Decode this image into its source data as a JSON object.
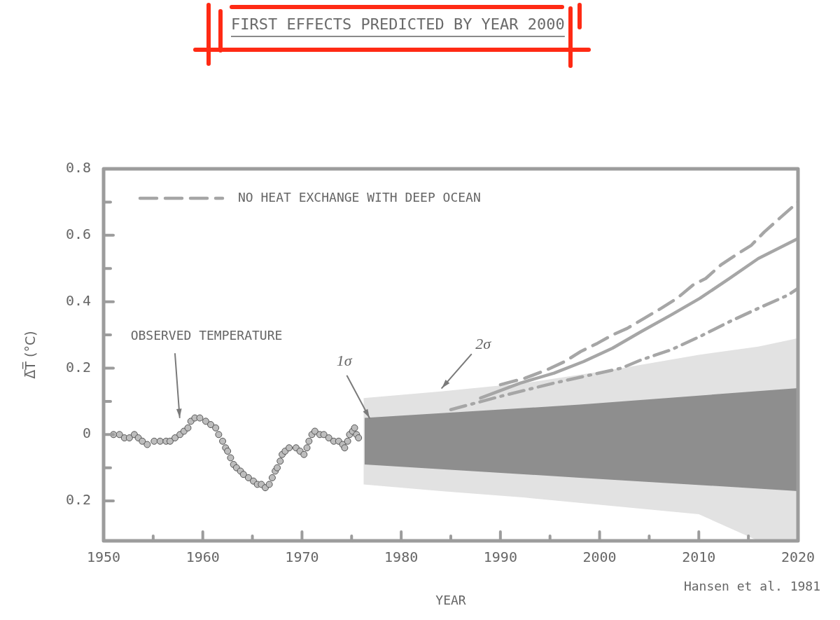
{
  "chart_data": {
    "type": "line",
    "title": "FIRST EFFECTS PREDICTED BY YEAR 2000",
    "xlabel": "YEAR",
    "ylabel": "Δ̅T̅ (°C)",
    "xlim": [
      1950,
      2020
    ],
    "xticks": [
      1950,
      {
        "value": 1955,
        "label": null
      },
      1960,
      {
        "value": 1965,
        "label": null
      },
      1970,
      {
        "value": 1975,
        "label": null
      },
      1980,
      {
        "value": 1985,
        "label": null
      },
      1990,
      {
        "value": 1995,
        "label": null
      },
      2000,
      {
        "value": 2005,
        "label": null
      },
      2010,
      {
        "value": 2015,
        "label": null
      },
      2020
    ],
    "ylim": [
      -0.32,
      0.8
    ],
    "yticks": [
      {
        "value": -0.2,
        "label": "0.2"
      },
      {
        "value": -0.1,
        "label": null
      },
      0,
      {
        "value": 0.1,
        "label": null
      },
      0.2,
      {
        "value": 0.3,
        "label": null
      },
      0.4,
      {
        "value": 0.5,
        "label": null
      },
      0.6,
      {
        "value": 0.7,
        "label": null
      },
      0.8
    ],
    "grid": false,
    "legend": "top left",
    "annotations": [
      "OBSERVED TEMPERATURE",
      {
        "text": "1σ",
        "x": 1976.8,
        "y": 0.05
      },
      {
        "text": "2σ",
        "x": 1984.1,
        "y": 0.14
      },
      "Hansen et al. 1981"
    ],
    "series": [
      {
        "type": "area",
        "color": "#e2e2e2",
        "x": [
          1976.2,
          1984,
          1992.5,
          2001.3,
          2010,
          2016,
          2020
        ],
        "values": [
          null,
          null,
          null,
          null,
          null,
          null,
          null
        ],
        "lower": [
          -0.15,
          -0.17,
          -0.19,
          -0.215,
          -0.24,
          -0.32,
          -0.32
        ],
        "upper": [
          0.11,
          0.13,
          0.155,
          0.195,
          0.24,
          0.265,
          0.29
        ]
      },
      {
        "type": "area",
        "color": "#8e8e8e",
        "x": [
          1976.3,
          1998,
          2020
        ],
        "values": [
          null,
          null,
          null
        ],
        "lower": [
          -0.09,
          -0.13,
          -0.17
        ],
        "upper": [
          0.05,
          0.09,
          0.14
        ]
      },
      {
        "type": "scatter",
        "marker": "circle",
        "color": "#bdbdbd",
        "x": [
          1951.0,
          1951.6,
          1952.1,
          1952.6,
          1953.1,
          1953.5,
          1953.9,
          1954.4,
          1955.1,
          1955.7,
          1956.3,
          1956.7,
          1957.2,
          1957.7,
          1958.1,
          1958.5,
          1958.8,
          1959.2,
          1959.7,
          1960.3,
          1960.8,
          1961.3,
          1961.6,
          1962.0,
          1962.3,
          1962.5,
          1962.8,
          1963.1,
          1963.4,
          1963.8,
          1964.1,
          1964.6,
          1965.1,
          1965.5,
          1965.9,
          1966.3,
          1966.7,
          1967.0,
          1967.3,
          1967.5,
          1967.8,
          1968.0,
          1968.3,
          1968.7,
          1969.4,
          1969.8,
          1970.2,
          1970.5,
          1970.7,
          1971.0,
          1971.3,
          1971.8,
          1972.2,
          1972.7,
          1973.2,
          1973.7,
          1974.1,
          1974.3,
          1974.6,
          1974.8,
          1975.1,
          1975.3,
          1975.5,
          1975.7
        ],
        "values": [
          0.0,
          0.0,
          -0.01,
          -0.01,
          0.0,
          -0.01,
          -0.02,
          -0.03,
          -0.02,
          -0.02,
          -0.02,
          -0.02,
          -0.01,
          0.0,
          0.01,
          0.02,
          0.04,
          0.05,
          0.05,
          0.04,
          0.03,
          0.02,
          0.0,
          -0.02,
          -0.04,
          -0.05,
          -0.07,
          -0.09,
          -0.1,
          -0.11,
          -0.12,
          -0.13,
          -0.14,
          -0.15,
          -0.15,
          -0.16,
          -0.15,
          -0.13,
          -0.11,
          -0.1,
          -0.08,
          -0.06,
          -0.05,
          -0.04,
          -0.04,
          -0.05,
          -0.06,
          -0.04,
          -0.02,
          0.0,
          0.01,
          0.0,
          0.0,
          -0.01,
          -0.02,
          -0.02,
          -0.03,
          -0.04,
          -0.02,
          0.0,
          0.01,
          0.02,
          0.0,
          -0.01
        ]
      },
      {
        "name": "NO HEAT EXCHANGE WITH DEEP OCEAN",
        "line_style": "dashed",
        "color": "#a6a6a6",
        "x": [
          1990,
          1992.5,
          1994.7,
          1996.5,
          1998.1,
          1999.8,
          2001.3,
          2002.8,
          2004.5,
          2006.2,
          2007.8,
          2009.4,
          2010.7,
          2012.2,
          2013.7,
          2015.3,
          2016.6,
          2018.1,
          2020
        ],
        "values": [
          0.15,
          0.17,
          0.195,
          0.22,
          0.25,
          0.275,
          0.3,
          0.32,
          0.35,
          0.38,
          0.41,
          0.45,
          0.47,
          0.51,
          0.54,
          0.57,
          0.61,
          0.65,
          0.7
        ]
      },
      {
        "color": "#a6a6a6",
        "x": [
          1988,
          1992,
          1995.4,
          1998.4,
          2001.3,
          2004.2,
          2007.2,
          2010.1,
          2013.1,
          2016,
          2020
        ],
        "values": [
          0.11,
          0.155,
          0.185,
          0.22,
          0.26,
          0.31,
          0.36,
          0.41,
          0.47,
          0.53,
          0.59
        ]
      },
      {
        "line_style": "dashdot",
        "color": "#a6a6a6",
        "x": [
          1985,
          1990,
          1995.4,
          2002.2,
          2004.2,
          2007.2,
          2010.1,
          2013.1,
          2016,
          2019,
          2020
        ],
        "values": [
          0.075,
          0.115,
          0.155,
          0.2,
          0.225,
          0.255,
          0.295,
          0.34,
          0.38,
          0.42,
          0.44
        ]
      }
    ]
  }
}
